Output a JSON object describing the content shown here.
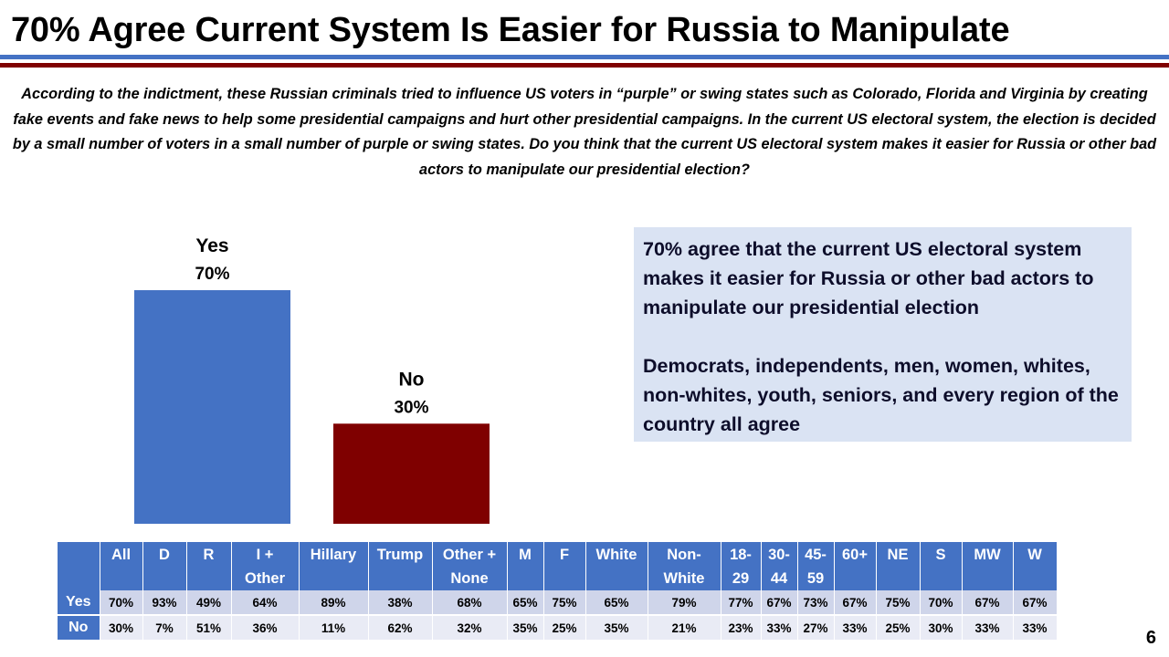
{
  "title": "70% Agree Current System Is Easier for Russia to Manipulate",
  "question": "According to the indictment, these Russian criminals tried to influence US voters in “purple” or swing states such as Colorado, Florida and Virginia by creating fake events and fake news to help some presidential campaigns and hurt other presidential campaigns. In the current US electoral system, the election is decided by a small number of voters in a small number of purple or swing states. Do you think that the current US electoral system makes it easier for Russia or other bad actors to manipulate our presidential election?",
  "chart_data": {
    "type": "bar",
    "categories": [
      "Yes",
      "No"
    ],
    "values": [
      70,
      30
    ],
    "data_labels": [
      "70%",
      "30%"
    ],
    "colors": [
      "#4472c4",
      "#7f0000"
    ],
    "title": "",
    "xlabel": "",
    "ylabel": "",
    "ylim": [
      0,
      70
    ],
    "grid": false,
    "legend": "none"
  },
  "callout": {
    "paragraph1": "70% agree that the current US electoral system makes it easier for Russia or other bad actors to manipulate our presidential election",
    "paragraph2": "Democrats, independents, men, women, whites, non-whites, youth, seniors, and every region of the country all agree"
  },
  "crosstab": {
    "columns": [
      [
        "All"
      ],
      [
        "D"
      ],
      [
        "R"
      ],
      [
        "I +",
        "Other"
      ],
      [
        "Hillary"
      ],
      [
        "Trump"
      ],
      [
        "Other +",
        "None"
      ],
      [
        "M"
      ],
      [
        "F"
      ],
      [
        "White"
      ],
      [
        "Non-",
        "White"
      ],
      [
        "18-",
        "29"
      ],
      [
        "30-",
        "44"
      ],
      [
        "45-",
        "59"
      ],
      [
        "60+"
      ],
      [
        "NE"
      ],
      [
        "S"
      ],
      [
        "MW"
      ],
      [
        "W"
      ]
    ],
    "rows": [
      {
        "label": "Yes",
        "values": [
          "70%",
          "93%",
          "49%",
          "64%",
          "89%",
          "38%",
          "68%",
          "65%",
          "75%",
          "65%",
          "79%",
          "77%",
          "67%",
          "73%",
          "67%",
          "75%",
          "70%",
          "67%",
          "67%"
        ]
      },
      {
        "label": "No",
        "values": [
          "30%",
          "7%",
          "51%",
          "36%",
          "11%",
          "62%",
          "32%",
          "35%",
          "25%",
          "35%",
          "21%",
          "23%",
          "33%",
          "27%",
          "33%",
          "25%",
          "30%",
          "33%",
          "33%"
        ]
      }
    ],
    "colors": {
      "header": "#4472c4",
      "yes_row": "#cfd5ea",
      "no_row": "#e9ebf5"
    }
  },
  "page_number": "6"
}
